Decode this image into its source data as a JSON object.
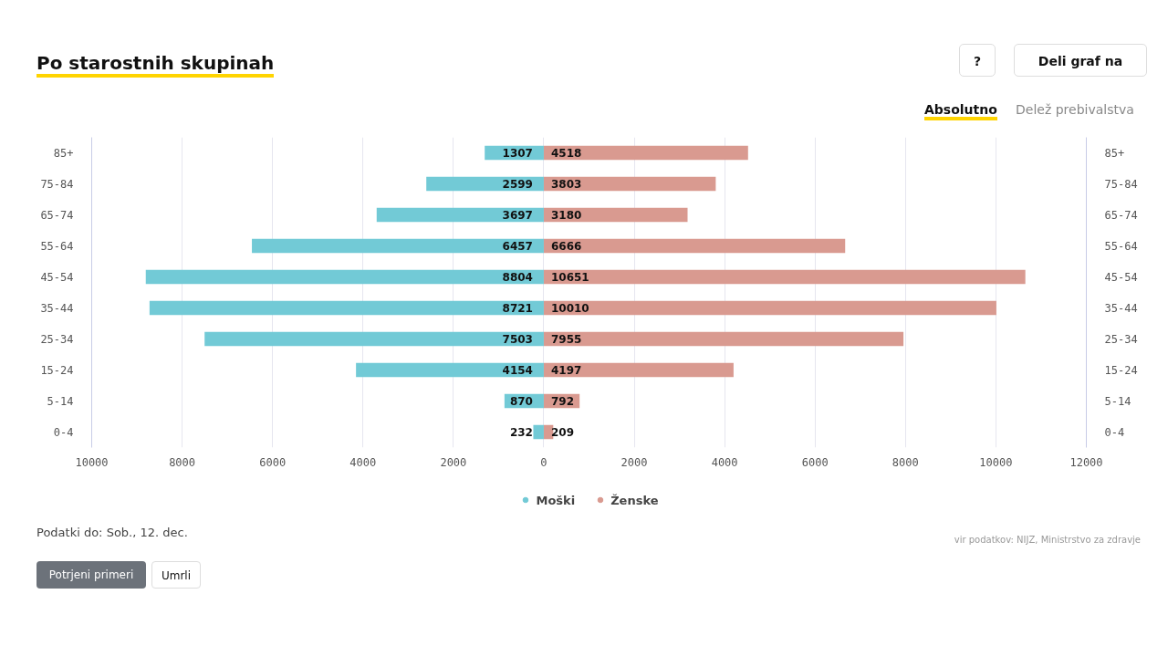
{
  "chart_data": {
    "type": "bar",
    "orientation": "horizontal",
    "title": "Po starostnih skupinah",
    "categories": [
      "85+",
      "75-84",
      "65-74",
      "55-64",
      "45-54",
      "35-44",
      "25-34",
      "15-24",
      "5-14",
      "0-4"
    ],
    "series": [
      {
        "name": "Moški",
        "color": "#72cad6",
        "values": [
          1307,
          2599,
          3697,
          6457,
          8804,
          8721,
          7503,
          4154,
          870,
          232
        ],
        "base": [
          -1307,
          -2599,
          -3697,
          -6457,
          -8804,
          -8721,
          -7503,
          -4154,
          -870,
          -232
        ],
        "value_labels": [
          "1307",
          "2599",
          "3697",
          "6457",
          "8804",
          "8721",
          "7503",
          "4154",
          "870",
          "232"
        ]
      },
      {
        "name": "Ženske",
        "color": "#d99a90",
        "values": [
          4518,
          3803,
          3180,
          6666,
          10651,
          10010,
          7955,
          4197,
          792,
          209
        ],
        "value_labels": [
          "4518",
          "3803",
          "3180",
          "6666",
          "10651",
          "10010",
          "7955",
          "4197",
          "792",
          "209"
        ]
      }
    ],
    "xlim": [
      -10000,
      12000
    ],
    "xticks": [
      {
        "value": -10000,
        "label": "10000"
      },
      {
        "value": -8000,
        "label": "8000"
      },
      {
        "value": -6000,
        "label": "6000"
      },
      {
        "value": -4000,
        "label": "4000"
      },
      {
        "value": -2000,
        "label": "2000"
      },
      0,
      2000,
      4000,
      6000,
      8000,
      10000,
      12000
    ],
    "grid": "x",
    "legend": "bottom",
    "annotations": [
      "?",
      "Deli graf na",
      "Absolutno",
      "Delež prebivalstva",
      "Podatki do: Sob., 12. dec.",
      "Potrjeni primeri",
      "Umrli",
      "vir podatkov: NIJZ, Ministrstvo za zdravje"
    ]
  }
}
